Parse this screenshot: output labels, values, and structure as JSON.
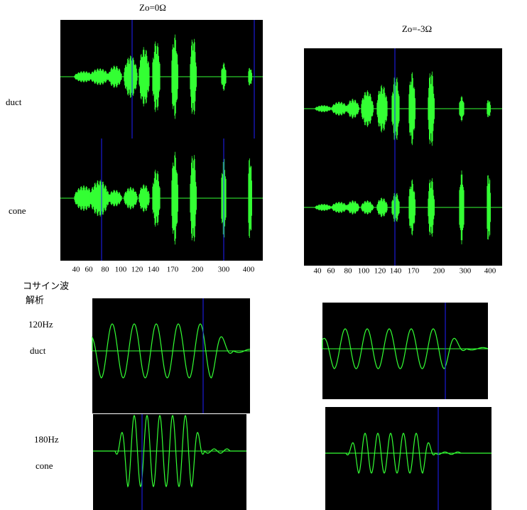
{
  "panels": [
    {
      "title": "Zo=0Ω",
      "row_labels": [
        "duct",
        "cone"
      ],
      "x_labels": [
        "40",
        "60",
        "80",
        "100",
        "120",
        "140",
        "170",
        "200",
        "300",
        "400"
      ]
    },
    {
      "title": "Zo=-3Ω",
      "x_labels": [
        "40",
        "60",
        "80",
        "100",
        "120",
        "140",
        "170",
        "200",
        "300",
        "400"
      ]
    }
  ],
  "cosine": {
    "heading": [
      "コサイン波",
      "解析"
    ],
    "labels": [
      "120Hz",
      "duct",
      "180Hz",
      "cone"
    ]
  }
}
